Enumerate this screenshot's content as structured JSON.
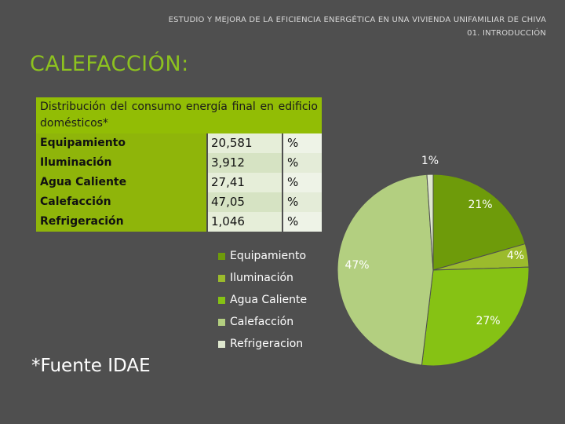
{
  "header": {
    "line1": "ESTUDIO Y MEJORA DE LA EFICIENCIA ENERGÉTICA EN UNA VIVIENDA UNIFAMILIAR DE CHIVA",
    "line2": "01. INTRODUCCIÓN"
  },
  "title": "CALEFACCIÓN:",
  "table": {
    "header": "Distribución del consumo energía final en edificio domésticos*",
    "rows": [
      {
        "label": "Equipamiento",
        "value": "20,581",
        "unit": "%"
      },
      {
        "label": "Iluminación",
        "value": "3,912",
        "unit": "%"
      },
      {
        "label": "Agua Caliente",
        "value": "27,41",
        "unit": "%"
      },
      {
        "label": "Calefacción",
        "value": "47,05",
        "unit": "%"
      },
      {
        "label": "Refrigeración",
        "value": "1,046",
        "unit": "%"
      }
    ]
  },
  "source": "*Fuente IDAE",
  "colors": {
    "background": "#4f4f4f",
    "title": "#8dc21f",
    "equipamiento": "#6e9b0a",
    "iluminacion": "#9bbb2c",
    "agua_caliente": "#86c214",
    "calefaccion": "#b3cf80",
    "refrigeracion": "#dfe8cf"
  },
  "chart_data": {
    "type": "pie",
    "categories": [
      "Equipamiento",
      "Iluminación",
      "Agua Caliente",
      "Calefacción",
      "Refrigeracion"
    ],
    "values": [
      20.581,
      3.912,
      27.41,
      47.05,
      1.046
    ],
    "labels": [
      "21%",
      "4%",
      "27%",
      "47%",
      "1%"
    ],
    "legend": [
      "Equipamiento",
      "Iluminación",
      "Agua Caliente",
      "Calefacción",
      "Refrigeracion"
    ],
    "legend_position": "left"
  }
}
